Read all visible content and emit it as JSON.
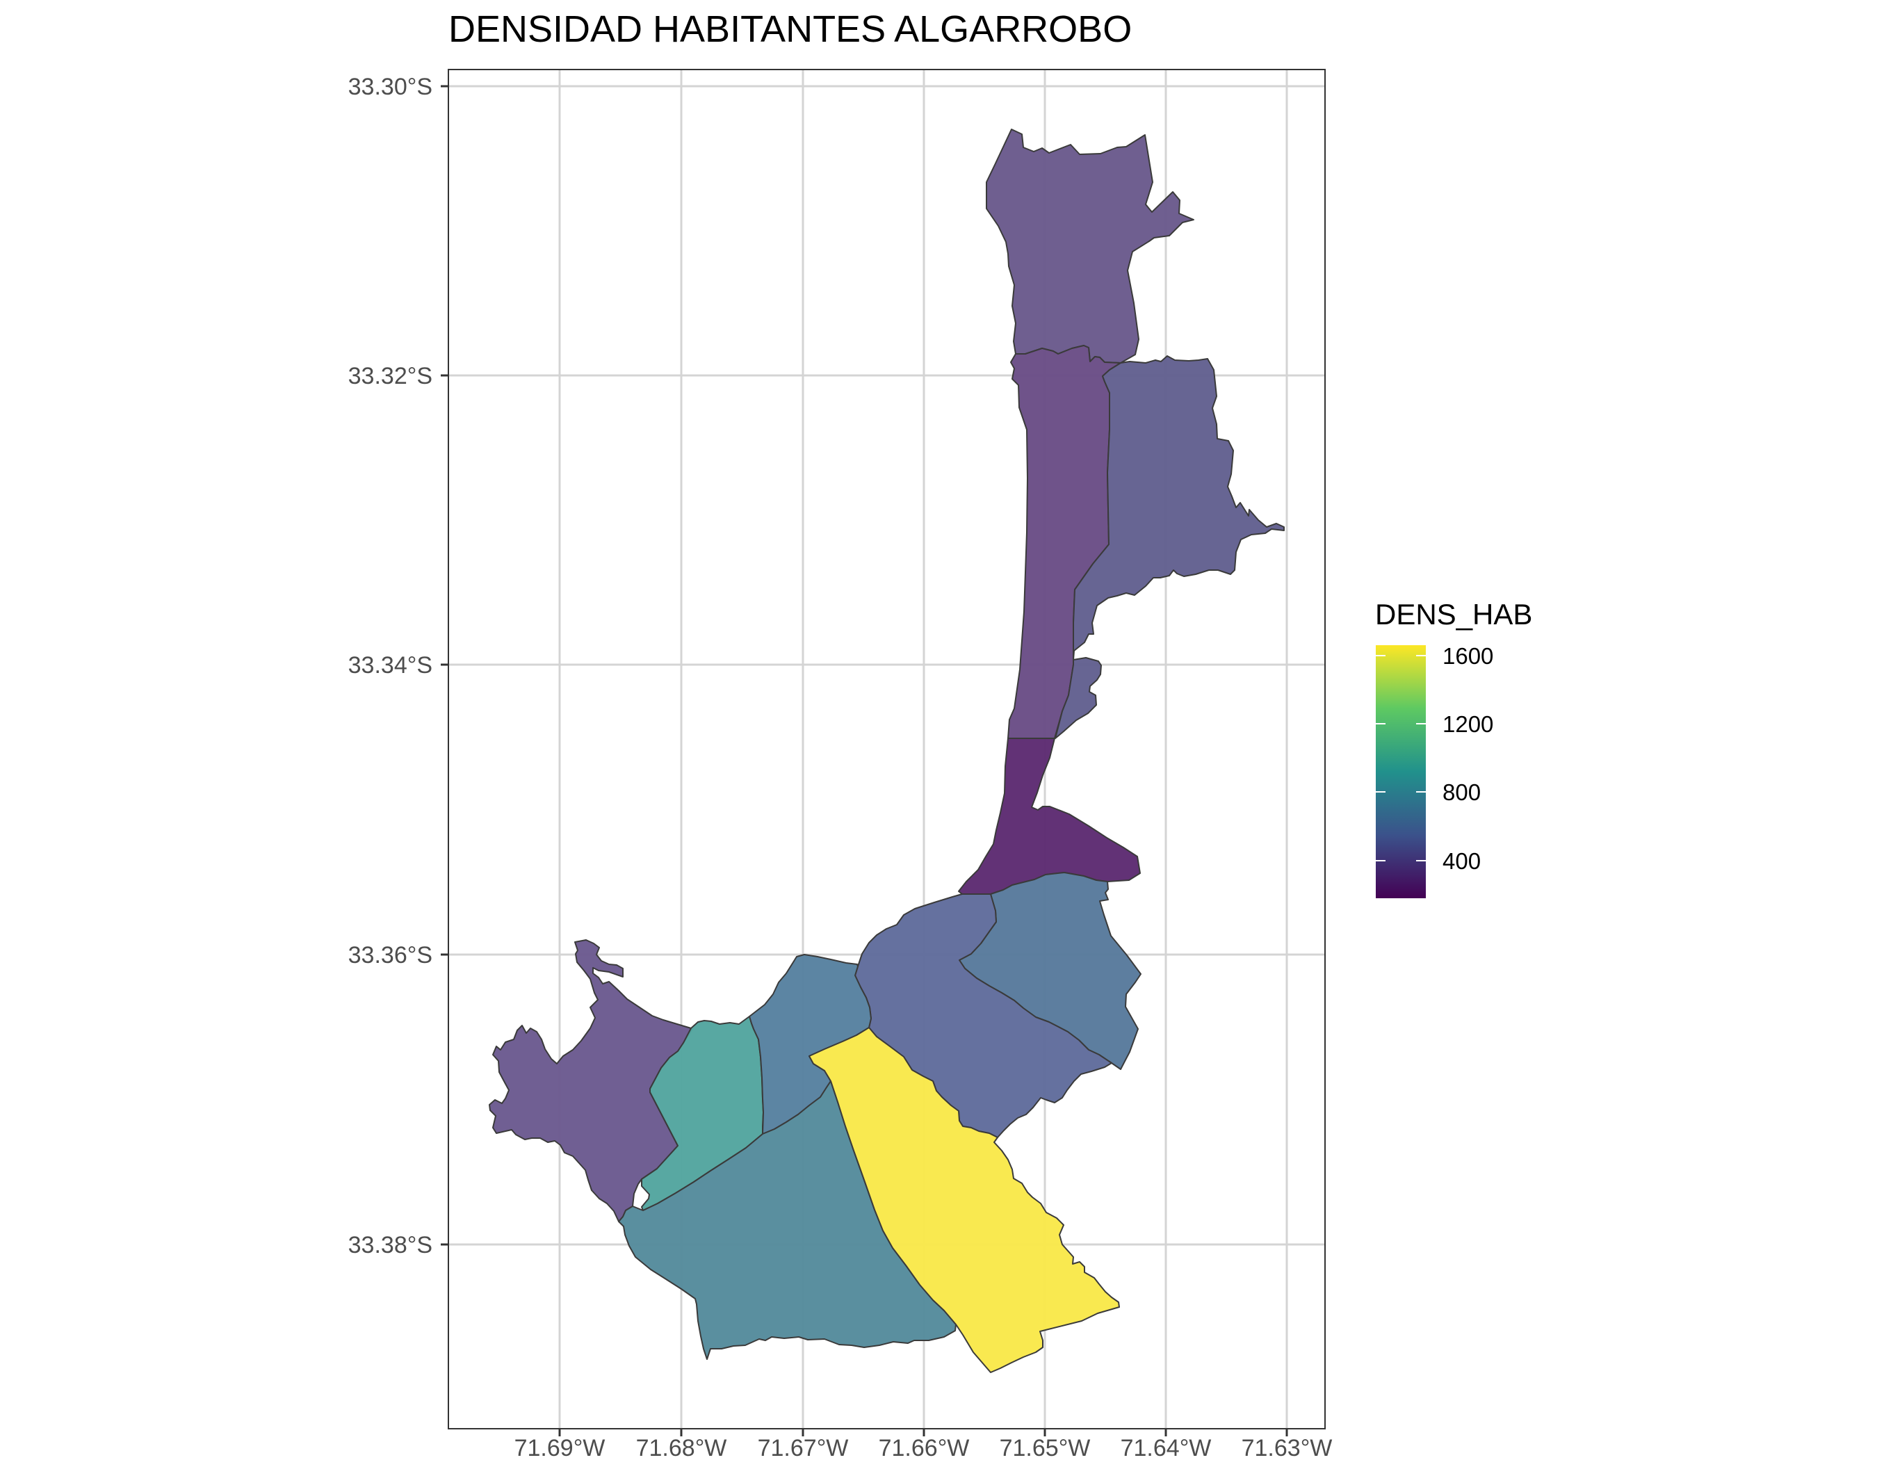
{
  "chart_title": "DENSIDAD HABITANTES ALGARROBO",
  "map": {
    "y_ticks": [
      "33.30°S",
      "33.32°S",
      "33.34°S",
      "33.36°S",
      "33.38°S"
    ],
    "x_ticks": [
      "71.69°W",
      "71.68°W",
      "71.67°W",
      "71.66°W",
      "71.65°W",
      "71.64°W",
      "71.63°W"
    ],
    "y_range_deg_south": [
      33.3913,
      33.2988
    ],
    "x_range_deg_west": [
      71.6993,
      71.6268
    ],
    "grid": true,
    "regions": [
      {
        "id": "northern-sector",
        "dens_hab": 330,
        "color": "#6a5a8c"
      },
      {
        "id": "beach-strip-north",
        "dens_hab": 240,
        "color": "#6a4d86"
      },
      {
        "id": "eastern-sector",
        "dens_hab": 450,
        "color": "#62608f"
      },
      {
        "id": "central-connector",
        "dens_hab": 130,
        "color": "#5d2b72"
      },
      {
        "id": "south-east-sector",
        "dens_hab": 620,
        "color": "#587a9c"
      },
      {
        "id": "south-central-east",
        "dens_hab": 500,
        "color": "#606c9c"
      },
      {
        "id": "western-peninsula",
        "dens_hab": 350,
        "color": "#6b5a90"
      },
      {
        "id": "west-central",
        "dens_hab": 1020,
        "color": "#53a59f"
      },
      {
        "id": "central",
        "dens_hab": 640,
        "color": "#5781a0"
      },
      {
        "id": "southern-large",
        "dens_hab": 790,
        "color": "#558b9c"
      },
      {
        "id": "south-east-high",
        "dens_hab": 1650,
        "color": "#f9e84a"
      }
    ]
  },
  "legend": {
    "title": "DENS_HAB",
    "labels": [
      "1600",
      "1200",
      "800",
      "400"
    ],
    "range": [
      100,
      1680
    ],
    "placement": "right",
    "gradient": [
      "#440154",
      "#3b528b",
      "#21918c",
      "#5ec962",
      "#fde725"
    ]
  }
}
